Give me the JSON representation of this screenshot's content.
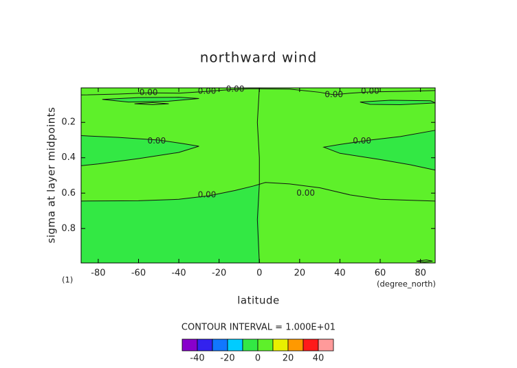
{
  "chart_data": {
    "type": "contour",
    "title": "northward wind",
    "x_label": "latitude",
    "x_unit": "(degree_north)",
    "y_label": "sigma at layer midpoints",
    "corner_label": "(1)",
    "annotation": "CONTOUR INTERVAL = 1.000E+01",
    "xlim": [
      -88.5,
      87.3
    ],
    "ylim": [
      0.995,
      0.005
    ],
    "xticks": [
      -80,
      -60,
      -40,
      -20,
      0,
      20,
      40,
      60,
      80
    ],
    "yticks": [
      0.2,
      0.4,
      0.6,
      0.8
    ],
    "background_level": 0,
    "colorbar": {
      "bins": [
        -50,
        -40,
        -30,
        -20,
        -10,
        0,
        10,
        20,
        30,
        40,
        50
      ],
      "colors": [
        "#8800cc",
        "#3322ee",
        "#1177ff",
        "#00ccff",
        "#33e844",
        "#5ef02a",
        "#e8f000",
        "#ff9900",
        "#ff1a1a",
        "#ff9a9a"
      ],
      "ticks": [
        -40,
        -20,
        0,
        20,
        40
      ]
    },
    "regions": [
      {
        "level": -10,
        "points": [
          [
            -88.5,
            0.645
          ],
          [
            -60,
            0.643
          ],
          [
            -40,
            0.635
          ],
          [
            -25,
            0.615
          ],
          [
            -12,
            0.585
          ],
          [
            -3,
            0.56
          ],
          [
            0,
            0.55
          ],
          [
            0,
            0.995
          ],
          [
            -88.5,
            0.995
          ]
        ]
      },
      {
        "level": -10,
        "points": [
          [
            -88.5,
            0.275
          ],
          [
            -70,
            0.285
          ],
          [
            -50,
            0.3
          ],
          [
            -38,
            0.32
          ],
          [
            -30,
            0.335
          ],
          [
            -40,
            0.37
          ],
          [
            -60,
            0.405
          ],
          [
            -80,
            0.435
          ],
          [
            -88.5,
            0.445
          ]
        ]
      },
      {
        "level": -10,
        "points": [
          [
            87.3,
            0.245
          ],
          [
            70,
            0.28
          ],
          [
            55,
            0.3
          ],
          [
            40,
            0.325
          ],
          [
            32,
            0.34
          ],
          [
            40,
            0.375
          ],
          [
            60,
            0.41
          ],
          [
            75,
            0.44
          ],
          [
            87.3,
            0.47
          ]
        ]
      },
      {
        "level": -10,
        "points": [
          [
            -78,
            0.07
          ],
          [
            -60,
            0.06
          ],
          [
            -40,
            0.058
          ],
          [
            -30,
            0.065
          ],
          [
            -45,
            0.08
          ],
          [
            -65,
            0.085
          ]
        ]
      },
      {
        "level": -10,
        "points": [
          [
            50,
            0.085
          ],
          [
            65,
            0.075
          ],
          [
            85,
            0.078
          ],
          [
            87.3,
            0.09
          ],
          [
            70,
            0.1
          ],
          [
            55,
            0.098
          ]
        ]
      }
    ],
    "contours": [
      {
        "level": 0,
        "points": [
          [
            0,
            0.005
          ],
          [
            -1,
            0.2
          ],
          [
            0,
            0.4
          ],
          [
            0,
            0.55
          ],
          [
            -1,
            0.75
          ],
          [
            0,
            0.995
          ]
        ]
      },
      {
        "level": 0,
        "points": [
          [
            -88.5,
            0.645
          ],
          [
            -60,
            0.643
          ],
          [
            -40,
            0.635
          ],
          [
            -25,
            0.615
          ],
          [
            -12,
            0.585
          ],
          [
            -3,
            0.56
          ],
          [
            0,
            0.55
          ]
        ],
        "labels": [
          {
            "text": "0.00",
            "at": [
              -26,
              0.61
            ]
          }
        ]
      },
      {
        "level": 0,
        "points": [
          [
            0,
            0.55
          ],
          [
            3,
            0.54
          ],
          [
            15,
            0.548
          ],
          [
            30,
            0.57
          ],
          [
            45,
            0.61
          ],
          [
            60,
            0.635
          ],
          [
            87.3,
            0.645
          ]
        ],
        "labels": [
          {
            "text": "0.00",
            "at": [
              23,
              0.6
            ]
          }
        ]
      },
      {
        "level": 0,
        "points": [
          [
            -88.5,
            0.275
          ],
          [
            -70,
            0.285
          ],
          [
            -50,
            0.3
          ],
          [
            -38,
            0.32
          ],
          [
            -30,
            0.335
          ],
          [
            -40,
            0.37
          ],
          [
            -60,
            0.405
          ],
          [
            -80,
            0.435
          ],
          [
            -88.5,
            0.445
          ]
        ],
        "labels": [
          {
            "text": "0.00",
            "at": [
              -51,
              0.305
            ]
          }
        ]
      },
      {
        "level": 0,
        "points": [
          [
            87.3,
            0.245
          ],
          [
            70,
            0.28
          ],
          [
            55,
            0.3
          ],
          [
            40,
            0.325
          ],
          [
            32,
            0.34
          ],
          [
            40,
            0.375
          ],
          [
            60,
            0.41
          ],
          [
            75,
            0.44
          ],
          [
            87.3,
            0.47
          ]
        ],
        "labels": [
          {
            "text": "0.00",
            "at": [
              51,
              0.305
            ]
          }
        ]
      },
      {
        "level": 0,
        "points": [
          [
            -88.5,
            0.045
          ],
          [
            -70,
            0.04
          ],
          [
            -55,
            0.033
          ],
          [
            -40,
            0.035
          ],
          [
            -26,
            0.025
          ],
          [
            -15,
            0.015
          ],
          [
            -5,
            0.01
          ],
          [
            0,
            0.01
          ]
        ],
        "labels": [
          {
            "text": "0.00",
            "at": [
              -55,
              0.033
            ]
          },
          {
            "text": "0.00",
            "at": [
              -26,
              0.025
            ]
          },
          {
            "text": "0.00",
            "at": [
              -12,
              0.013
            ]
          }
        ]
      },
      {
        "level": 0,
        "points": [
          [
            0,
            0.01
          ],
          [
            15,
            0.012
          ],
          [
            30,
            0.03
          ],
          [
            37,
            0.044
          ],
          [
            45,
            0.035
          ],
          [
            55,
            0.028
          ],
          [
            70,
            0.025
          ],
          [
            87.3,
            0.02
          ]
        ],
        "labels": [
          {
            "text": "0.00",
            "at": [
              37,
              0.044
            ]
          },
          {
            "text": "0.00",
            "at": [
              55,
              0.025
            ]
          }
        ]
      },
      {
        "level": 0,
        "points": [
          [
            -78,
            0.07
          ],
          [
            -60,
            0.06
          ],
          [
            -40,
            0.058
          ],
          [
            -30,
            0.065
          ],
          [
            -45,
            0.08
          ],
          [
            -65,
            0.085
          ],
          [
            -78,
            0.07
          ]
        ]
      },
      {
        "level": 0,
        "points": [
          [
            -62,
            0.095
          ],
          [
            -53,
            0.088
          ],
          [
            -45,
            0.095
          ],
          [
            -53,
            0.1
          ],
          [
            -62,
            0.095
          ]
        ]
      },
      {
        "level": 0,
        "points": [
          [
            50,
            0.085
          ],
          [
            65,
            0.075
          ],
          [
            85,
            0.078
          ],
          [
            87.3,
            0.09
          ],
          [
            70,
            0.1
          ],
          [
            55,
            0.098
          ],
          [
            50,
            0.085
          ]
        ]
      },
      {
        "level": 0,
        "points": [
          [
            78,
            0.985
          ],
          [
            83,
            0.978
          ],
          [
            86,
            0.985
          ],
          [
            82,
            0.99
          ],
          [
            78,
            0.985
          ]
        ]
      }
    ]
  }
}
